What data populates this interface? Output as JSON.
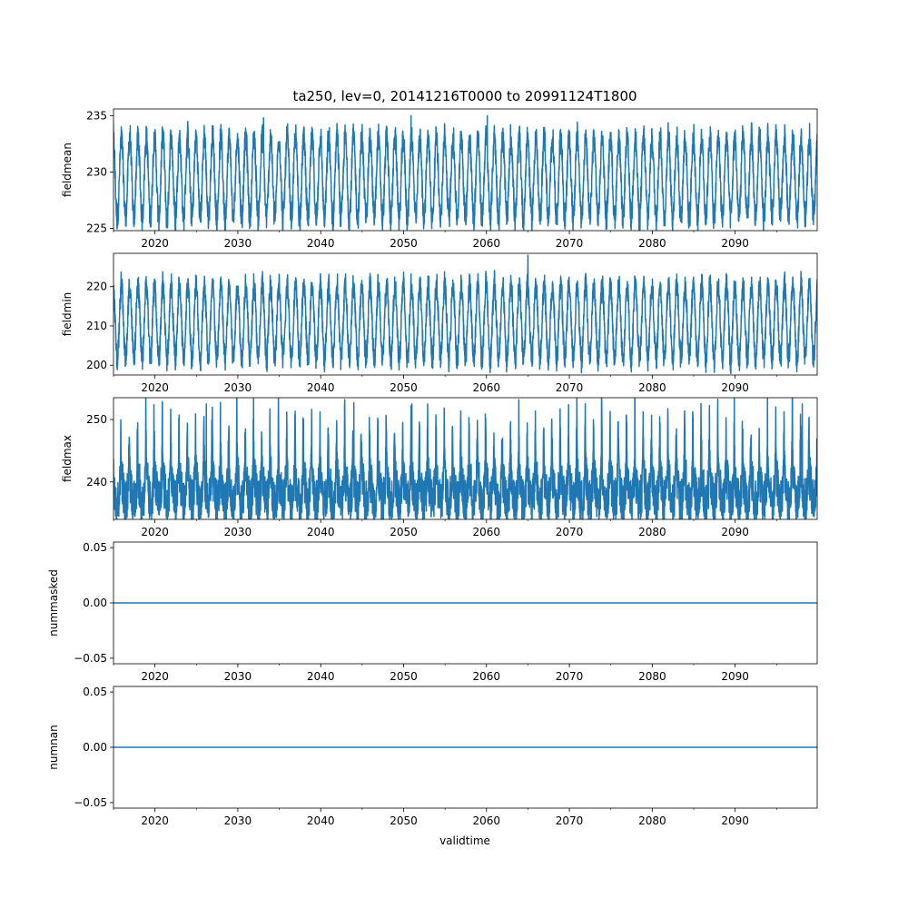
{
  "figure": {
    "title": "ta250, lev=0, 20141216T0000 to 20991124T1800",
    "xlabel": "validtime"
  },
  "chart_data": [
    {
      "type": "line",
      "name": "fieldmean",
      "ylabel": "fieldmean",
      "xlim": [
        2015.0,
        2099.9
      ],
      "ylim": [
        224.8,
        235.6
      ],
      "yticks": [
        225,
        230,
        235
      ],
      "xticks": [
        2020,
        2030,
        2040,
        2050,
        2060,
        2070,
        2080,
        2090
      ],
      "series": [
        {
          "name": "fieldmean",
          "x_range": [
            2014.96,
            2099.9
          ],
          "seasonal_range": [
            225.5,
            233.5
          ],
          "peaks": [
            {
              "x": 2033.1,
              "y": 234.8
            },
            {
              "x": 2050.9,
              "y": 235.0
            },
            {
              "x": 2060.1,
              "y": 235.0
            }
          ],
          "color": "#1f77b4"
        }
      ]
    },
    {
      "type": "line",
      "name": "fieldmin",
      "ylabel": "fieldmin",
      "xlim": [
        2015.0,
        2099.9
      ],
      "ylim": [
        197.5,
        228.5
      ],
      "yticks": [
        200,
        210,
        220
      ],
      "xticks": [
        2020,
        2030,
        2040,
        2050,
        2060,
        2070,
        2080,
        2090
      ],
      "series": [
        {
          "name": "fieldmin",
          "x_range": [
            2014.96,
            2099.9
          ],
          "seasonal_range": [
            200.5,
            221.5
          ],
          "peaks": [
            {
              "x": 2065.0,
              "y": 228.0
            }
          ],
          "color": "#1f77b4"
        }
      ]
    },
    {
      "type": "line",
      "name": "fieldmax",
      "ylabel": "fieldmax",
      "xlim": [
        2015.0,
        2099.9
      ],
      "ylim": [
        234.0,
        253.5
      ],
      "yticks": [
        240,
        250
      ],
      "xticks": [
        2020,
        2030,
        2040,
        2050,
        2060,
        2070,
        2080,
        2090
      ],
      "series": [
        {
          "name": "fieldmax",
          "x_range": [
            2014.96,
            2099.9
          ],
          "base_range": [
            235.0,
            245.0
          ],
          "peaks": [
            {
              "x": 2026.2,
              "y": 252.5
            },
            {
              "x": 2044.0,
              "y": 252.7
            },
            {
              "x": 2051.0,
              "y": 252.5
            },
            {
              "x": 2098.1,
              "y": 252.5
            }
          ],
          "color": "#1f77b4"
        }
      ]
    },
    {
      "type": "line",
      "name": "nummasked",
      "ylabel": "nummasked",
      "xlim": [
        2015.0,
        2099.9
      ],
      "ylim": [
        -0.055,
        0.055
      ],
      "yticks": [
        -0.05,
        0.0,
        0.05
      ],
      "ytick_labels": [
        "−0.05",
        "0.00",
        "0.05"
      ],
      "xticks": [
        2020,
        2030,
        2040,
        2050,
        2060,
        2070,
        2080,
        2090
      ],
      "series": [
        {
          "name": "nummasked",
          "x": [
            2014.96,
            2099.9
          ],
          "y": [
            0,
            0
          ],
          "color": "#1f77b4"
        }
      ]
    },
    {
      "type": "line",
      "name": "numnan",
      "ylabel": "numnan",
      "xlim": [
        2015.0,
        2099.9
      ],
      "ylim": [
        -0.055,
        0.055
      ],
      "yticks": [
        -0.05,
        0.0,
        0.05
      ],
      "ytick_labels": [
        "−0.05",
        "0.00",
        "0.05"
      ],
      "xticks": [
        2020,
        2030,
        2040,
        2050,
        2060,
        2070,
        2080,
        2090
      ],
      "series": [
        {
          "name": "numnan",
          "x": [
            2014.96,
            2099.9
          ],
          "y": [
            0,
            0
          ],
          "color": "#1f77b4"
        }
      ]
    }
  ]
}
